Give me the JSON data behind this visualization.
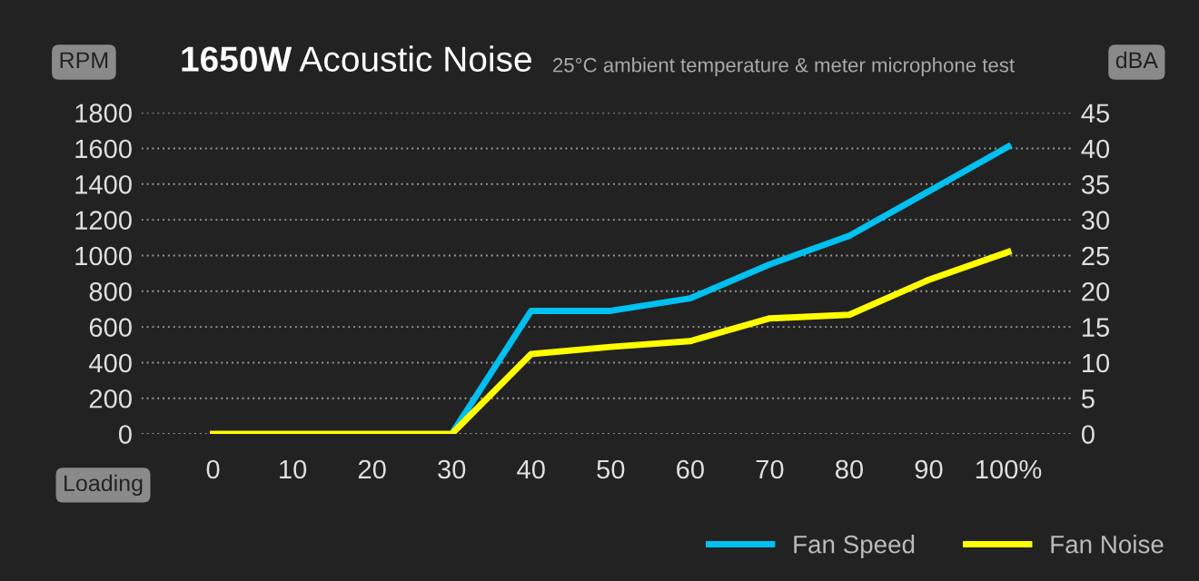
{
  "chart_data": {
    "type": "line",
    "title": "1650W",
    "subtitle": "Acoustic Noise",
    "annotations": [
      "25°C ambient temperature & meter microphone test"
    ],
    "xlabel": "Loading",
    "ylabel": "RPM",
    "y2label": "dBA",
    "x": [
      0,
      10,
      20,
      30,
      40,
      50,
      60,
      70,
      80,
      90,
      100
    ],
    "series": [
      {
        "name": "Fan Speed",
        "color": "#00c0f0",
        "values": [
          null,
          null,
          null,
          0,
          690,
          690,
          760,
          950,
          1110,
          1360,
          1610
        ]
      },
      {
        "name": "Fan Noise",
        "color": "#ffff00",
        "axis": "y2",
        "values": [
          0,
          0,
          0,
          0,
          11.2,
          12.2,
          13,
          16.2,
          16.7,
          21.6,
          25.5
        ]
      }
    ],
    "xlim": [
      -9,
      108
    ],
    "xticks": [
      0,
      10,
      20,
      30,
      40,
      50,
      60,
      70,
      80,
      90,
      {
        "value": 100,
        "label": "100%"
      }
    ],
    "ylim": [
      0,
      1800
    ],
    "yticks": [
      0,
      200,
      400,
      600,
      800,
      1000,
      1200,
      1400,
      1600,
      1800
    ],
    "y2lim": [
      0,
      45
    ],
    "y2ticks": [
      0,
      5,
      10,
      15,
      20,
      25,
      30,
      35,
      40,
      45
    ],
    "grid": "y",
    "legend": "bottom right",
    "marker": "none",
    "line_style": "solid"
  }
}
